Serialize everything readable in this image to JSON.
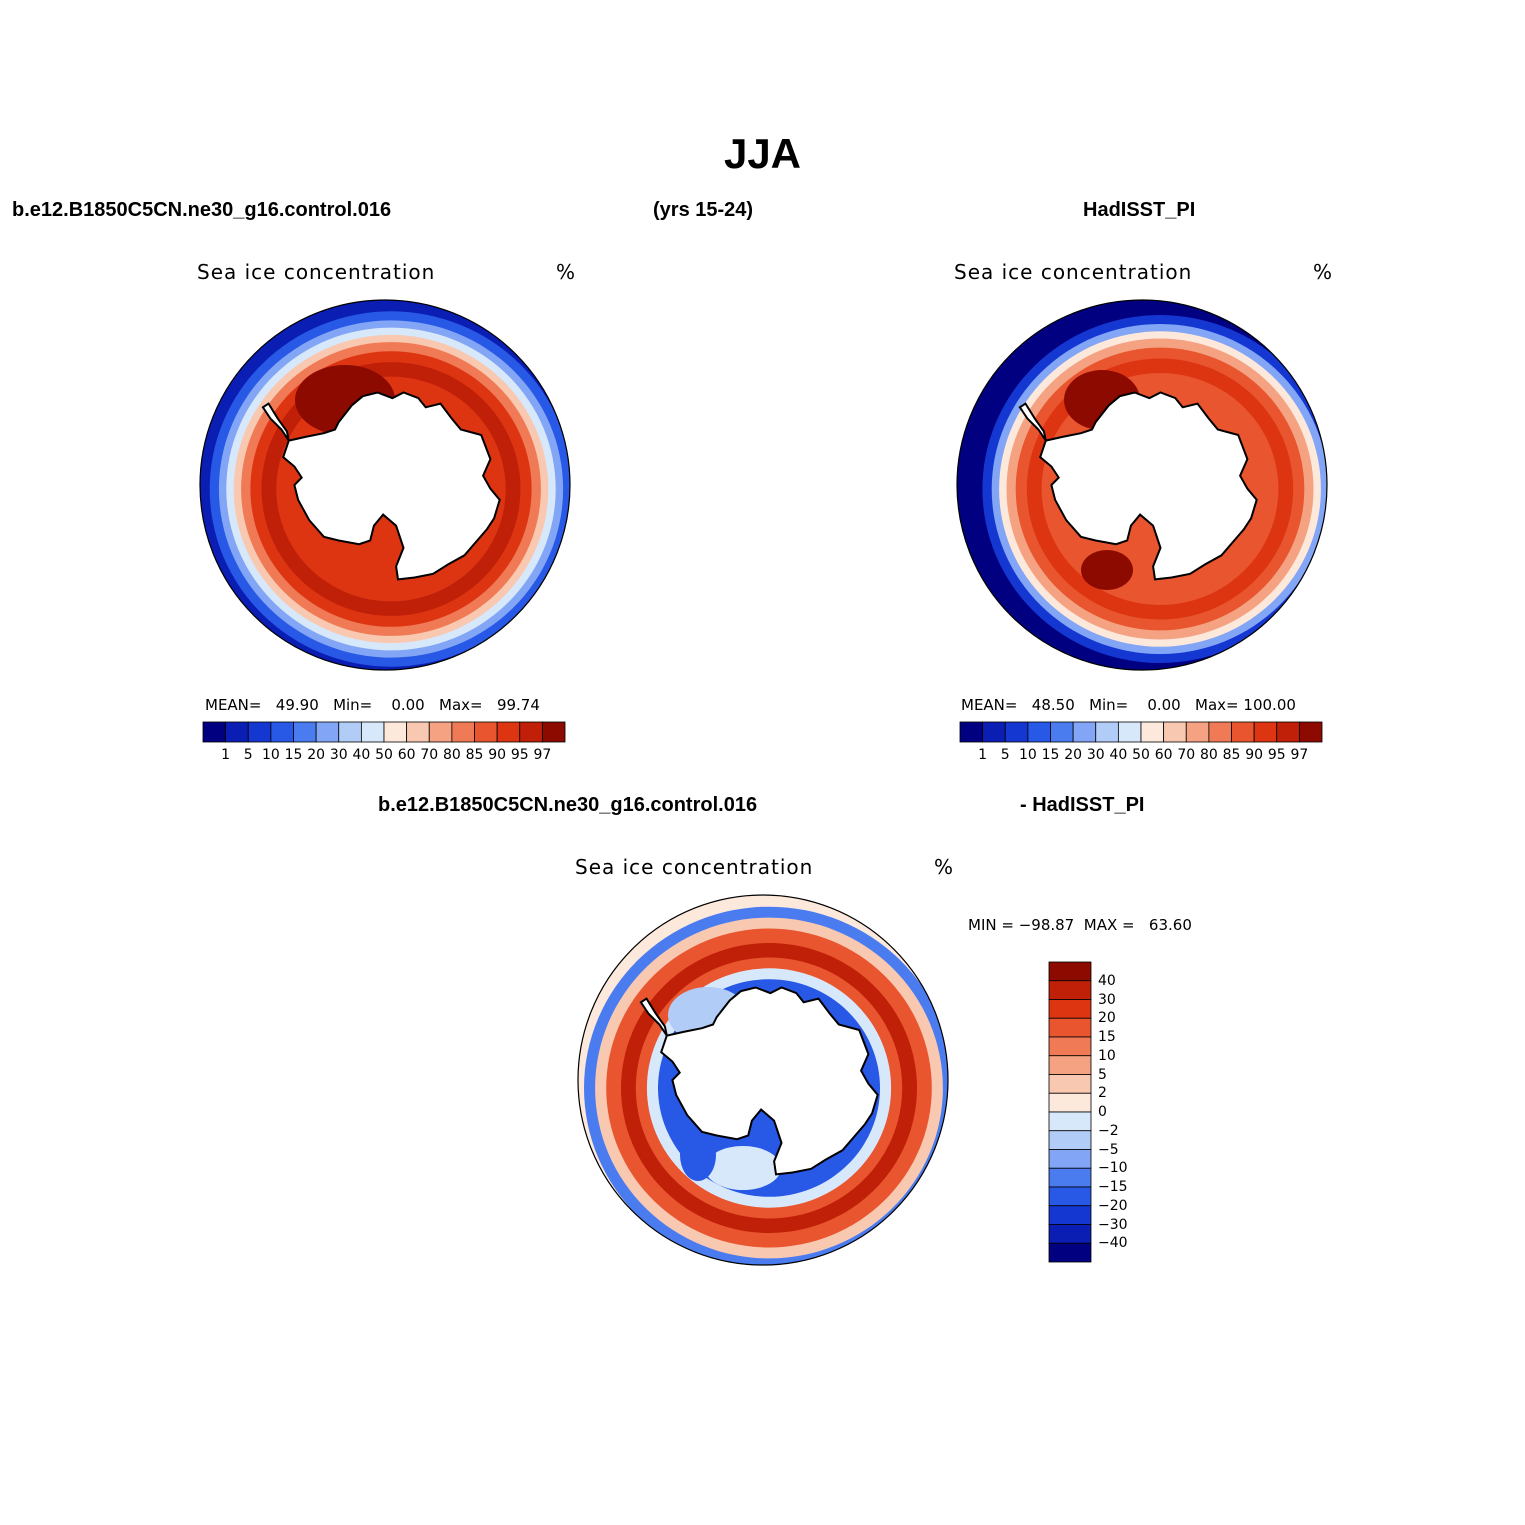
{
  "figure": {
    "title": "JJA",
    "header_case": "b.e12.B1850C5CN.ne30_g16.control.016",
    "header_years": "(yrs 15-24)",
    "header_obs": "HadISST_PI",
    "diff_header_case": "b.e12.B1850C5CN.ne30_g16.control.016",
    "diff_header_obs": "- HadISST_PI"
  },
  "colors": {
    "abs_scale": [
      "#000080",
      "#0a1eb4",
      "#1437d2",
      "#2858e6",
      "#4a7cf0",
      "#82a6f5",
      "#b2ccf8",
      "#d8e8fb",
      "#fde8dc",
      "#f9c8b0",
      "#f4a282",
      "#ef7a55",
      "#e8552e",
      "#dd3512",
      "#c01f08",
      "#8c0a00"
    ],
    "diff_scale": [
      "#000080",
      "#0a1eb4",
      "#1437d2",
      "#2858e6",
      "#4a7cf0",
      "#82a6f5",
      "#b2ccf8",
      "#d8e8fb",
      "#fde8dc",
      "#f9c8b0",
      "#f4a282",
      "#ef7a55",
      "#e8552e",
      "#dd3512",
      "#c01f08",
      "#8c0a00"
    ],
    "land": "#ffffff",
    "coast": "#000000"
  },
  "chart_data": [
    {
      "type": "heatmap",
      "projection": "south polar stereographic",
      "title": "Sea ice concentration",
      "units": "%",
      "stats": {
        "mean_label": "MEAN=",
        "mean": "49.90",
        "min_label": "Min=",
        "min": "0.00",
        "max_label": "Max=",
        "max": "99.74"
      },
      "colorbar_levels": [
        "1",
        "5",
        "10",
        "15",
        "20",
        "30",
        "40",
        "50",
        "60",
        "70",
        "80",
        "85",
        "90",
        "95",
        "97"
      ]
    },
    {
      "type": "heatmap",
      "projection": "south polar stereographic",
      "title": "Sea ice concentration",
      "units": "%",
      "stats": {
        "mean_label": "MEAN=",
        "mean": "48.50",
        "min_label": "Min=",
        "min": "0.00",
        "max_label": "Max=",
        "max": "100.00"
      },
      "colorbar_levels": [
        "1",
        "5",
        "10",
        "15",
        "20",
        "30",
        "40",
        "50",
        "60",
        "70",
        "80",
        "85",
        "90",
        "95",
        "97"
      ]
    },
    {
      "type": "heatmap",
      "projection": "south polar stereographic",
      "title": "Sea ice concentration",
      "units": "%",
      "stats": {
        "min_label": "MIN =",
        "min": "−98.87",
        "max_label": "MAX =",
        "max": "63.60"
      },
      "colorbar_levels": [
        "40",
        "30",
        "20",
        "15",
        "10",
        "5",
        "2",
        "0",
        "−2",
        "−5",
        "−10",
        "−15",
        "−20",
        "−30",
        "−40"
      ]
    }
  ]
}
